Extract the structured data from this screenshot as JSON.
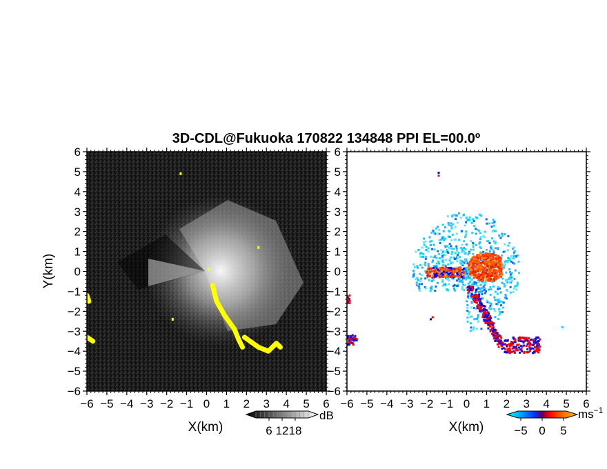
{
  "chart_data": [
    {
      "type": "heatmap",
      "title": "3D-CDL@Fukuoka 170822 134848 PPI EL=00.0º",
      "panel": "reflectivity",
      "xlabel": "X(km)",
      "ylabel": "Y(km)",
      "xlim": [
        -6,
        6
      ],
      "ylim": [
        -6,
        6
      ],
      "xticks": [
        -6,
        -5,
        -4,
        -3,
        -2,
        -1,
        0,
        1,
        2,
        3,
        4,
        5,
        6
      ],
      "yticks": [
        -6,
        -5,
        -4,
        -3,
        -2,
        -1,
        0,
        1,
        2,
        3,
        4,
        5,
        6
      ],
      "background_color": "#1e1e1e",
      "highlight_color": "#ffff00",
      "highlight_regions_km": [
        {
          "x": [
            0.3,
            0.5,
            0.9,
            1.4,
            1.6,
            1.8
          ],
          "y": [
            -0.7,
            -1.5,
            -2.2,
            -2.9,
            -3.4,
            -3.8
          ]
        },
        {
          "x": [
            1.9,
            2.6,
            3.1,
            3.5,
            3.7
          ],
          "y": [
            -3.3,
            -3.8,
            -4.0,
            -3.6,
            -3.8
          ]
        },
        {
          "x": [
            -6.0,
            -5.7
          ],
          "y": [
            -3.3,
            -3.5
          ]
        },
        {
          "x": [
            -6.0,
            -5.9
          ],
          "y": [
            -1.2,
            -1.5
          ]
        }
      ],
      "colorbar": {
        "unit": "dB",
        "ticks": [
          6,
          12,
          18
        ],
        "colors": [
          "#000000",
          "#ffffff"
        ]
      }
    },
    {
      "type": "heatmap",
      "panel": "doppler_velocity",
      "xlabel": "X(km)",
      "ylabel": "",
      "xlim": [
        -6,
        6
      ],
      "ylim": [
        -6,
        6
      ],
      "xticks": [
        -6,
        -5,
        -4,
        -3,
        -2,
        -1,
        0,
        1,
        2,
        3,
        4,
        5,
        6
      ],
      "yticks": [
        -6,
        -5,
        -4,
        -3,
        -2,
        -1,
        0,
        1,
        2,
        3,
        4,
        5,
        6
      ],
      "colorbar": {
        "unit": "ms",
        "unit_exponent": "−1",
        "ticks": [
          -5,
          0,
          5
        ],
        "colors": [
          "#00ffff",
          "#0080ff",
          "#0000ff",
          "#ff0000",
          "#ff8000",
          "#ffc000"
        ]
      }
    }
  ]
}
